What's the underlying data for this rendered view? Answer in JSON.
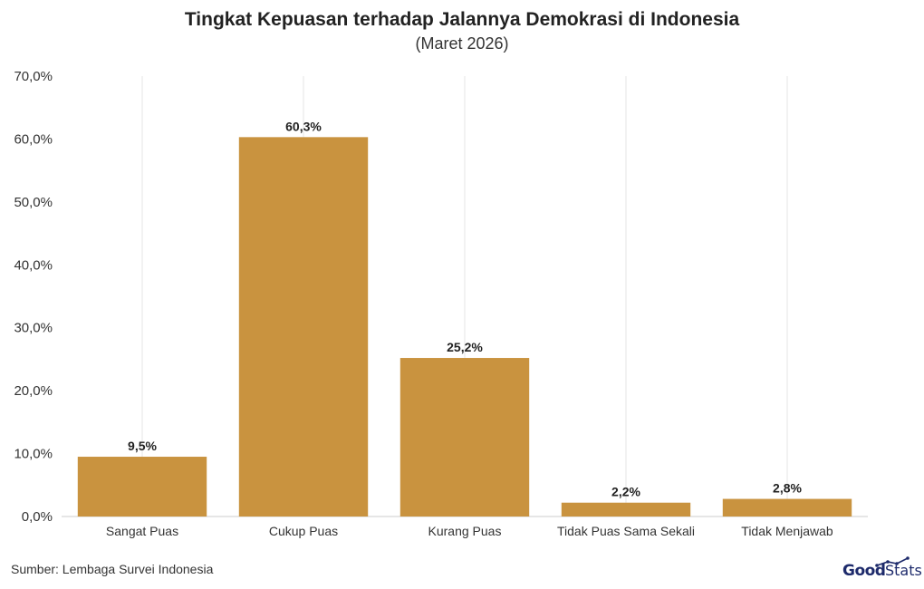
{
  "chart_data": {
    "type": "bar",
    "title": "Tingkat Kepuasan terhadap Jalannya Demokrasi di Indonesia",
    "subtitle": "(Maret 2026)",
    "categories": [
      "Sangat Puas",
      "Cukup Puas",
      "Kurang Puas",
      "Tidak Puas Sama Sekali",
      "Tidak Menjawab"
    ],
    "values": [
      9.5,
      60.3,
      25.2,
      2.2,
      2.8
    ],
    "data_labels": [
      "9,5%",
      "60,3%",
      "25,2%",
      "2,2%",
      "2,8%"
    ],
    "ylim": [
      0,
      70
    ],
    "yticks": [
      0,
      10,
      20,
      30,
      40,
      50,
      60,
      70
    ],
    "ytick_labels": [
      "0,0%",
      "10,0%",
      "20,0%",
      "30,0%",
      "40,0%",
      "50,0%",
      "60,0%",
      "70,0%"
    ],
    "xlabel": "",
    "ylabel": "",
    "grid": "vertical",
    "legend": "none",
    "bar_color": "#c9933f"
  },
  "footer": {
    "source": "Sumber: Lembaga Survei Indonesia",
    "logo_good": "Good",
    "logo_stats": "Stats"
  },
  "colors": {
    "logo": "#1d2a6b",
    "gridline": "#e6e6e6",
    "axis": "#cccccc"
  }
}
